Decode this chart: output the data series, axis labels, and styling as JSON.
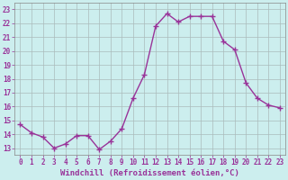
{
  "x": [
    0,
    1,
    2,
    3,
    4,
    5,
    6,
    7,
    8,
    9,
    10,
    11,
    12,
    13,
    14,
    15,
    16,
    17,
    18,
    19,
    20,
    21,
    22,
    23
  ],
  "y": [
    14.7,
    14.1,
    13.8,
    13.0,
    13.3,
    13.9,
    13.9,
    12.9,
    13.5,
    14.4,
    16.6,
    18.3,
    21.8,
    22.7,
    22.1,
    22.5,
    22.5,
    22.5,
    20.7,
    20.1,
    17.7,
    16.6,
    16.1,
    15.9
  ],
  "line_color": "#993399",
  "marker": "+",
  "marker_size": 4,
  "linewidth": 1.0,
  "bg_color": "#cceeee",
  "grid_color": "#aabbbb",
  "xlabel": "Windchill (Refroidissement éolien,°C)",
  "xlabel_fontsize": 6.5,
  "yticks": [
    13,
    14,
    15,
    16,
    17,
    18,
    19,
    20,
    21,
    22,
    23
  ],
  "xticks": [
    0,
    1,
    2,
    3,
    4,
    5,
    6,
    7,
    8,
    9,
    10,
    11,
    12,
    13,
    14,
    15,
    16,
    17,
    18,
    19,
    20,
    21,
    22,
    23
  ],
  "xlim": [
    -0.5,
    23.5
  ],
  "ylim": [
    12.5,
    23.5
  ],
  "tick_fontsize": 5.5,
  "tick_color": "#993399",
  "label_color": "#993399"
}
